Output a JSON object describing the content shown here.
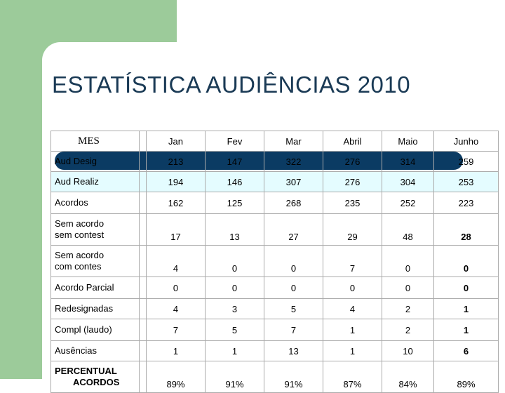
{
  "title": "ESTATÍSTICA  AUDIÊNCIAS 2010",
  "table": {
    "header": {
      "label": "MES",
      "months": [
        "Jan",
        "Fev",
        "Mar",
        "Abril",
        "Maio",
        "Junho"
      ]
    },
    "rows": [
      {
        "label": "Aud Desig",
        "label2": "",
        "values": [
          "213",
          "147",
          "322",
          "276",
          "314",
          "259"
        ]
      },
      {
        "label": "Aud Realiz",
        "label2": "",
        "values": [
          "194",
          "146",
          "307",
          "276",
          "304",
          "253"
        ]
      },
      {
        "label": "Acordos",
        "label2": "",
        "values": [
          "162",
          "125",
          "268",
          "235",
          "252",
          "223"
        ]
      },
      {
        "label": "Sem acordo",
        "label2": "sem contest",
        "values": [
          "17",
          "13",
          "27",
          "29",
          "48",
          "28"
        ]
      },
      {
        "label": "Sem acordo",
        "label2": "com contes",
        "values": [
          "4",
          "0",
          "0",
          "7",
          "0",
          "0"
        ]
      },
      {
        "label": "Acordo Parcial",
        "label2": "",
        "values": [
          "0",
          "0",
          "0",
          "0",
          "0",
          "0"
        ]
      },
      {
        "label": "Redesignadas",
        "label2": "",
        "values": [
          "4",
          "3",
          "5",
          "4",
          "2",
          "1"
        ]
      },
      {
        "label": "Compl (laudo)",
        "label2": "",
        "values": [
          "7",
          "5",
          "7",
          "1",
          "2",
          "1"
        ]
      },
      {
        "label": "Ausências",
        "label2": "",
        "values": [
          "1",
          "1",
          "13",
          "1",
          "10",
          "6"
        ]
      },
      {
        "label": "PERCENTUAL",
        "label2": "ACORDOS",
        "values": [
          "89%",
          "91%",
          "91%",
          "87%",
          "84%",
          "89%"
        ]
      }
    ]
  },
  "colors": {
    "green_block": "#9ccb9a",
    "title_bar": "#0b3b63",
    "title_text": "#1a3a55",
    "highlight_row": "#e4fcff"
  }
}
